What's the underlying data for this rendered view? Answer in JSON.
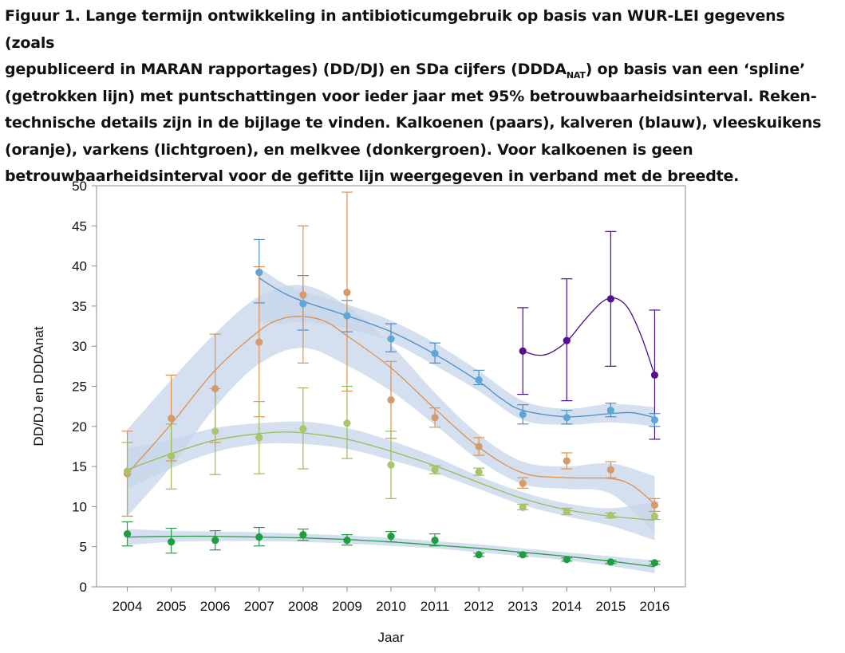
{
  "caption": {
    "lines": [
      "Figuur 1. Lange termijn ontwikkeling in antibioticumgebruik op basis van WUR-LEI gegevens (zoals",
      "gepubliceerd in MARAN rapportages) (DD/DJ) en SDa cijfers (DDDA",
      "(getrokken lijn) met puntschattingen voor ieder jaar met 95% betrouwbaarheidsinterval. Reken-",
      "technische details zijn in de bijlage te vinden. Kalkoenen (paars), kalveren (blauw), vleeskuikens",
      "(oranje), varkens (lichtgroen), en melkvee (donkergroen). Voor kalkoenen is geen",
      "betrouwbaarheidsinterval voor de gefitte lijn weergegeven in verband met de breedte."
    ],
    "line2_sub": "NAT",
    "line2_tail": ") op basis van een ‘spline’"
  },
  "chart_data": {
    "type": "scatter",
    "xlabel": "Jaar",
    "ylabel": "DD/DJ en DDDAnat",
    "xlim": [
      2003.3,
      2016.7
    ],
    "ylim": [
      0,
      50
    ],
    "x_ticks": [
      2004,
      2005,
      2006,
      2007,
      2008,
      2009,
      2010,
      2011,
      2012,
      2013,
      2014,
      2015,
      2016
    ],
    "y_ticks": [
      0,
      5,
      10,
      15,
      20,
      25,
      30,
      35,
      40,
      45,
      50
    ],
    "grid": false,
    "band_color": "#c6d5ea",
    "series": [
      {
        "key": "kalkoenen",
        "color": "#4b0f8c",
        "point_color": "#55108f",
        "points": [
          {
            "x": 2013,
            "y": 29.4,
            "lo": 24.0,
            "hi": 34.8
          },
          {
            "x": 2014,
            "y": 30.7,
            "lo": 23.2,
            "hi": 38.4
          },
          {
            "x": 2015,
            "y": 35.9,
            "lo": 27.5,
            "hi": 44.3
          },
          {
            "x": 2016,
            "y": 26.4,
            "lo": 18.4,
            "hi": 34.5
          }
        ],
        "fit": [
          [
            2013,
            29.4
          ],
          [
            2013.3,
            28.9
          ],
          [
            2013.6,
            29.1
          ],
          [
            2014,
            30.6
          ],
          [
            2014.4,
            33.2
          ],
          [
            2014.8,
            35.5
          ],
          [
            2015.1,
            36.0
          ],
          [
            2015.4,
            34.7
          ],
          [
            2015.7,
            31.2
          ],
          [
            2016,
            26.4
          ]
        ],
        "band": null
      },
      {
        "key": "kalveren",
        "color": "#4f8cc8",
        "point_color": "#5ea6d6",
        "points": [
          {
            "x": 2007,
            "y": 39.2,
            "lo": 35.4,
            "hi": 43.3
          },
          {
            "x": 2008,
            "y": 35.3,
            "lo": 32.0,
            "hi": 38.8
          },
          {
            "x": 2009,
            "y": 33.8,
            "lo": 31.8,
            "hi": 35.7
          },
          {
            "x": 2010,
            "y": 30.9,
            "lo": 29.3,
            "hi": 32.8
          },
          {
            "x": 2011,
            "y": 29.1,
            "lo": 27.9,
            "hi": 30.4
          },
          {
            "x": 2012,
            "y": 25.8,
            "lo": 25.2,
            "hi": 27.0
          },
          {
            "x": 2013,
            "y": 21.5,
            "lo": 20.3,
            "hi": 22.7
          },
          {
            "x": 2014,
            "y": 21.1,
            "lo": 20.3,
            "hi": 22.0
          },
          {
            "x": 2015,
            "y": 22.0,
            "lo": 21.2,
            "hi": 22.9
          },
          {
            "x": 2016,
            "y": 20.8,
            "lo": 20.0,
            "hi": 21.6
          }
        ],
        "fit": [
          [
            2007,
            38.5
          ],
          [
            2007.5,
            36.8
          ],
          [
            2008,
            35.6
          ],
          [
            2009,
            33.8
          ],
          [
            2010,
            31.8
          ],
          [
            2011,
            29.0
          ],
          [
            2012,
            25.6
          ],
          [
            2012.5,
            23.5
          ],
          [
            2013,
            22.0
          ],
          [
            2014,
            21.2
          ],
          [
            2015,
            21.6
          ],
          [
            2015.5,
            21.7
          ],
          [
            2016,
            21.1
          ]
        ],
        "band": [
          [
            2007,
            33.0,
            39.8
          ],
          [
            2007.5,
            32.8,
            38.0
          ],
          [
            2008,
            33.0,
            36.8
          ],
          [
            2009,
            32.2,
            35.2
          ],
          [
            2010,
            30.5,
            33.2
          ],
          [
            2011,
            27.6,
            30.4
          ],
          [
            2012,
            24.4,
            26.9
          ],
          [
            2013,
            20.8,
            23.2
          ],
          [
            2014,
            20.2,
            22.2
          ],
          [
            2015,
            20.5,
            22.8
          ],
          [
            2016,
            20.0,
            22.4
          ]
        ]
      },
      {
        "key": "vleeskuikens",
        "color": "#e0904a",
        "point_color": "#d79a6a",
        "points": [
          {
            "x": 2004,
            "y": 14.1,
            "lo": 8.8,
            "hi": 19.4
          },
          {
            "x": 2005,
            "y": 21.0,
            "lo": 15.7,
            "hi": 26.4
          },
          {
            "x": 2006,
            "y": 24.7,
            "lo": 18.0,
            "hi": 31.5
          },
          {
            "x": 2007,
            "y": 30.5,
            "lo": 21.2,
            "hi": 39.9
          },
          {
            "x": 2008,
            "y": 36.4,
            "lo": 27.9,
            "hi": 45.0
          },
          {
            "x": 2009,
            "y": 36.7,
            "lo": 24.4,
            "hi": 49.2
          },
          {
            "x": 2010,
            "y": 23.3,
            "lo": 18.5,
            "hi": 28.1
          },
          {
            "x": 2011,
            "y": 21.1,
            "lo": 19.9,
            "hi": 22.3
          },
          {
            "x": 2012,
            "y": 17.5,
            "lo": 16.4,
            "hi": 18.6
          },
          {
            "x": 2013,
            "y": 12.9,
            "lo": 12.3,
            "hi": 13.6
          },
          {
            "x": 2014,
            "y": 15.7,
            "lo": 14.7,
            "hi": 16.7
          },
          {
            "x": 2015,
            "y": 14.6,
            "lo": 13.6,
            "hi": 15.6
          },
          {
            "x": 2016,
            "y": 10.2,
            "lo": 9.4,
            "hi": 11.0
          }
        ],
        "fit": [
          [
            2004,
            14.1
          ],
          [
            2005,
            20.3
          ],
          [
            2006,
            27.0
          ],
          [
            2007,
            31.9
          ],
          [
            2007.5,
            33.4
          ],
          [
            2008,
            33.7
          ],
          [
            2008.5,
            33.1
          ],
          [
            2009,
            31.3
          ],
          [
            2010,
            27.3
          ],
          [
            2011,
            22.2
          ],
          [
            2012,
            17.4
          ],
          [
            2013,
            14.2
          ],
          [
            2014,
            13.6
          ],
          [
            2015,
            13.5
          ],
          [
            2015.5,
            12.6
          ],
          [
            2016,
            10.3
          ]
        ],
        "band": [
          [
            2004,
            8.8,
            19.6
          ],
          [
            2005,
            15.0,
            25.8
          ],
          [
            2006,
            22.4,
            31.6
          ],
          [
            2007,
            27.8,
            36.2
          ],
          [
            2008,
            29.8,
            37.6
          ],
          [
            2009,
            27.6,
            35.0
          ],
          [
            2010,
            24.4,
            30.2
          ],
          [
            2011,
            20.2,
            24.2
          ],
          [
            2012,
            15.8,
            19.0
          ],
          [
            2013,
            12.8,
            15.6
          ],
          [
            2014,
            12.2,
            15.0
          ],
          [
            2015,
            11.6,
            15.4
          ],
          [
            2016,
            6.8,
            13.8
          ]
        ]
      },
      {
        "key": "varkens",
        "color": "#9bbb59",
        "point_color": "#a9c46a",
        "points": [
          {
            "x": 2004,
            "y": 14.4,
            "lo": 8.8,
            "hi": 18.0
          },
          {
            "x": 2005,
            "y": 16.3,
            "lo": 12.2,
            "hi": 20.3
          },
          {
            "x": 2006,
            "y": 19.4,
            "lo": 14.0,
            "hi": 24.7
          },
          {
            "x": 2007,
            "y": 18.6,
            "lo": 14.1,
            "hi": 23.1
          },
          {
            "x": 2008,
            "y": 19.7,
            "lo": 14.7,
            "hi": 24.8
          },
          {
            "x": 2009,
            "y": 20.4,
            "lo": 16.0,
            "hi": 25.0
          },
          {
            "x": 2010,
            "y": 15.2,
            "lo": 11.0,
            "hi": 19.4
          },
          {
            "x": 2011,
            "y": 14.6,
            "lo": 14.1,
            "hi": 15.1
          },
          {
            "x": 2012,
            "y": 14.3,
            "lo": 13.9,
            "hi": 14.8
          },
          {
            "x": 2013,
            "y": 9.9,
            "lo": 9.6,
            "hi": 10.3
          },
          {
            "x": 2014,
            "y": 9.4,
            "lo": 9.0,
            "hi": 9.8
          },
          {
            "x": 2015,
            "y": 8.9,
            "lo": 8.6,
            "hi": 9.2
          },
          {
            "x": 2016,
            "y": 8.8,
            "lo": 8.4,
            "hi": 9.4
          }
        ],
        "fit": [
          [
            2004,
            14.6
          ],
          [
            2005,
            16.6
          ],
          [
            2006,
            18.3
          ],
          [
            2007,
            19.1
          ],
          [
            2007.5,
            19.3
          ],
          [
            2008,
            19.2
          ],
          [
            2009,
            18.4
          ],
          [
            2010,
            16.9
          ],
          [
            2011,
            15.1
          ],
          [
            2012,
            13.0
          ],
          [
            2013,
            11.0
          ],
          [
            2014,
            9.6
          ],
          [
            2015,
            8.8
          ],
          [
            2016,
            8.3
          ]
        ],
        "band": [
          [
            2004,
            12.2,
            17.2
          ],
          [
            2005,
            14.8,
            18.4
          ],
          [
            2006,
            16.8,
            19.8
          ],
          [
            2007,
            17.8,
            20.4
          ],
          [
            2008,
            17.8,
            20.6
          ],
          [
            2009,
            17.2,
            19.8
          ],
          [
            2010,
            15.8,
            18.2
          ],
          [
            2011,
            14.2,
            16.2
          ],
          [
            2012,
            12.2,
            13.8
          ],
          [
            2013,
            10.2,
            11.8
          ],
          [
            2014,
            8.8,
            10.4
          ],
          [
            2015,
            7.6,
            9.8
          ],
          [
            2016,
            5.8,
            10.6
          ]
        ]
      },
      {
        "key": "melkvee",
        "color": "#2a9a47",
        "point_color": "#1e9e3e",
        "points": [
          {
            "x": 2004,
            "y": 6.6,
            "lo": 5.1,
            "hi": 8.1
          },
          {
            "x": 2005,
            "y": 5.6,
            "lo": 4.2,
            "hi": 7.3
          },
          {
            "x": 2006,
            "y": 5.8,
            "lo": 4.6,
            "hi": 7.0
          },
          {
            "x": 2007,
            "y": 6.2,
            "lo": 5.1,
            "hi": 7.4
          },
          {
            "x": 2008,
            "y": 6.5,
            "lo": 5.8,
            "hi": 7.2
          },
          {
            "x": 2009,
            "y": 5.8,
            "lo": 5.2,
            "hi": 6.5
          },
          {
            "x": 2010,
            "y": 6.3,
            "lo": 5.6,
            "hi": 6.9
          },
          {
            "x": 2011,
            "y": 5.8,
            "lo": 5.1,
            "hi": 6.6
          },
          {
            "x": 2012,
            "y": 4.0,
            "lo": 3.8,
            "hi": 4.2
          },
          {
            "x": 2013,
            "y": 4.0,
            "lo": 3.8,
            "hi": 4.2
          },
          {
            "x": 2014,
            "y": 3.4,
            "lo": 3.2,
            "hi": 3.6
          },
          {
            "x": 2015,
            "y": 3.1,
            "lo": 2.9,
            "hi": 3.3
          },
          {
            "x": 2016,
            "y": 3.0,
            "lo": 2.8,
            "hi": 3.2
          }
        ],
        "fit": [
          [
            2004,
            6.2
          ],
          [
            2005,
            6.3
          ],
          [
            2006,
            6.3
          ],
          [
            2007,
            6.2
          ],
          [
            2008,
            6.1
          ],
          [
            2009,
            5.9
          ],
          [
            2010,
            5.6
          ],
          [
            2011,
            5.2
          ],
          [
            2012,
            4.8
          ],
          [
            2013,
            4.3
          ],
          [
            2014,
            3.8
          ],
          [
            2015,
            3.2
          ],
          [
            2016,
            2.5
          ]
        ],
        "band": [
          [
            2004,
            5.2,
            7.2
          ],
          [
            2005,
            5.6,
            7.0
          ],
          [
            2006,
            5.7,
            6.9
          ],
          [
            2007,
            5.7,
            6.8
          ],
          [
            2008,
            5.6,
            6.6
          ],
          [
            2009,
            5.4,
            6.4
          ],
          [
            2010,
            5.1,
            6.1
          ],
          [
            2011,
            4.8,
            5.7
          ],
          [
            2012,
            4.3,
            5.3
          ],
          [
            2013,
            3.8,
            4.8
          ],
          [
            2014,
            3.3,
            4.3
          ],
          [
            2015,
            2.6,
            3.8
          ],
          [
            2016,
            1.7,
            3.3
          ]
        ]
      }
    ]
  }
}
